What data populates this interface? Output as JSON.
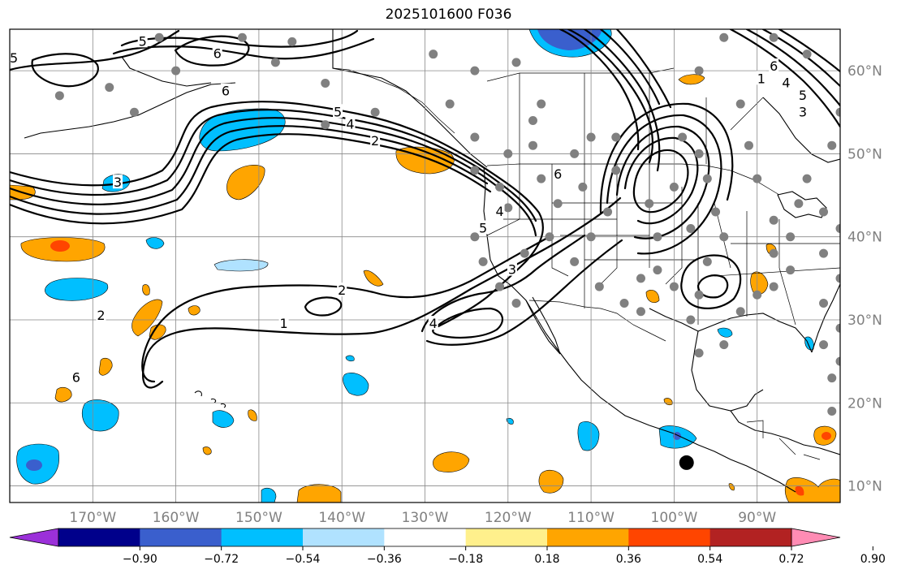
{
  "title": "2025101600 F036",
  "map": {
    "projection": "plate-carree",
    "lon_range": [
      -180,
      -80
    ],
    "lat_range": [
      8,
      65
    ],
    "gridlines": true,
    "lon_ticks": [
      {
        "value": -170,
        "label": "170°W"
      },
      {
        "value": -160,
        "label": "160°W"
      },
      {
        "value": -150,
        "label": "150°W"
      },
      {
        "value": -140,
        "label": "140°W"
      },
      {
        "value": -130,
        "label": "130°W"
      },
      {
        "value": -120,
        "label": "120°W"
      },
      {
        "value": -110,
        "label": "110°W"
      },
      {
        "value": -100,
        "label": "100°W"
      },
      {
        "value": -90,
        "label": "90°W"
      }
    ],
    "lat_ticks": [
      {
        "value": 10,
        "label": "10°N"
      },
      {
        "value": 20,
        "label": "20°N"
      },
      {
        "value": 30,
        "label": "30°N"
      },
      {
        "value": 40,
        "label": "40°N"
      },
      {
        "value": 50,
        "label": "50°N"
      },
      {
        "value": 60,
        "label": "60°N"
      }
    ]
  },
  "colorbar": {
    "orientation": "horizontal",
    "extend": "both",
    "colors": [
      "#9b30d9",
      "#00008b",
      "#3a5fcd",
      "#00bfff",
      "#b0e2ff",
      "#ffffff",
      "#fff08c",
      "#ffa500",
      "#ff4500",
      "#b22222",
      "#ff8cb4"
    ],
    "ticks": [
      "−0.90",
      "−0.72",
      "−0.54",
      "−0.36",
      "−0.18",
      "0.18",
      "0.36",
      "0.54",
      "0.72",
      "0.90"
    ]
  },
  "contour_labels": [
    {
      "text": "5",
      "lon": -179.5,
      "lat": 61.5
    },
    {
      "text": "6",
      "lon": -155,
      "lat": 62
    },
    {
      "text": "5",
      "lon": -164,
      "lat": 63.5
    },
    {
      "text": "6",
      "lon": -154,
      "lat": 57.5
    },
    {
      "text": "5",
      "lon": -140.5,
      "lat": 55
    },
    {
      "text": "4",
      "lon": -139,
      "lat": 53.5
    },
    {
      "text": "3",
      "lon": -167,
      "lat": 46.5
    },
    {
      "text": "2",
      "lon": -136,
      "lat": 51.5
    },
    {
      "text": "2",
      "lon": -140,
      "lat": 33.5
    },
    {
      "text": "1",
      "lon": -147,
      "lat": 29.5
    },
    {
      "text": "2",
      "lon": -169,
      "lat": 30.5
    },
    {
      "text": "6",
      "lon": -172,
      "lat": 23
    },
    {
      "text": "4",
      "lon": -129,
      "lat": 29.5
    },
    {
      "text": "3",
      "lon": -119.5,
      "lat": 36
    },
    {
      "text": "5",
      "lon": -123,
      "lat": 41
    },
    {
      "text": "4",
      "lon": -121,
      "lat": 43
    },
    {
      "text": "6",
      "lon": -114,
      "lat": 47.5
    },
    {
      "text": "1",
      "lon": -89.5,
      "lat": 59
    },
    {
      "text": "6",
      "lon": -88,
      "lat": 60.5
    },
    {
      "text": "4",
      "lon": -86.5,
      "lat": 58.5
    },
    {
      "text": "5",
      "lon": -84.5,
      "lat": 57
    },
    {
      "text": "3",
      "lon": -84.5,
      "lat": 55
    }
  ],
  "station_dots": [
    [
      -160,
      60
    ],
    [
      -168,
      58
    ],
    [
      -174,
      57
    ],
    [
      -146,
      63.5
    ],
    [
      -148,
      61
    ],
    [
      -142,
      58.5
    ],
    [
      -136,
      55
    ],
    [
      -142,
      53.5
    ],
    [
      -129,
      62
    ],
    [
      -124,
      60
    ],
    [
      -119,
      61
    ],
    [
      -127,
      56
    ],
    [
      -124,
      52
    ],
    [
      -120,
      50
    ],
    [
      -117,
      54
    ],
    [
      -117,
      51
    ],
    [
      -124,
      48
    ],
    [
      -121,
      46
    ],
    [
      -120,
      43.5
    ],
    [
      -124,
      40
    ],
    [
      -123,
      37
    ],
    [
      -121,
      34
    ],
    [
      -119,
      32
    ],
    [
      -116,
      47
    ],
    [
      -114,
      44
    ],
    [
      -112,
      50
    ],
    [
      -110,
      52
    ],
    [
      -107,
      52
    ],
    [
      -107,
      48
    ],
    [
      -111,
      46
    ],
    [
      -108,
      43
    ],
    [
      -110,
      40
    ],
    [
      -112,
      37
    ],
    [
      -109,
      34
    ],
    [
      -106,
      32
    ],
    [
      -104,
      35
    ],
    [
      -102,
      40
    ],
    [
      -103,
      44
    ],
    [
      -100,
      46
    ],
    [
      -99,
      52
    ],
    [
      -97,
      50
    ],
    [
      -96,
      47
    ],
    [
      -95,
      43
    ],
    [
      -94,
      40
    ],
    [
      -96,
      37
    ],
    [
      -97,
      33
    ],
    [
      -98,
      30
    ],
    [
      -97,
      26
    ],
    [
      -94,
      27
    ],
    [
      -92,
      31
    ],
    [
      -90,
      33
    ],
    [
      -88,
      34
    ],
    [
      -86,
      36
    ],
    [
      -88,
      38
    ],
    [
      -86,
      40
    ],
    [
      -88,
      42
    ],
    [
      -85,
      44
    ],
    [
      -84,
      47
    ],
    [
      -82,
      43
    ],
    [
      -80,
      41
    ],
    [
      -82,
      38
    ],
    [
      -80,
      35
    ],
    [
      -82,
      32
    ],
    [
      -80,
      29
    ],
    [
      -82,
      27
    ],
    [
      -80,
      25
    ],
    [
      -102,
      36
    ],
    [
      -98,
      41
    ],
    [
      -100,
      34
    ],
    [
      -104,
      31
    ],
    [
      -90,
      47
    ],
    [
      -91,
      51
    ],
    [
      -92,
      56
    ],
    [
      -97,
      60
    ],
    [
      -94,
      64
    ],
    [
      -88,
      64
    ],
    [
      -84,
      62
    ],
    [
      -80,
      55
    ],
    [
      -81,
      51
    ],
    [
      -81,
      23
    ],
    [
      -81,
      19
    ],
    [
      -118,
      38
    ],
    [
      -115,
      40
    ],
    [
      -116,
      56
    ],
    [
      -162,
      64
    ],
    [
      -152,
      64
    ],
    [
      -165,
      55
    ]
  ],
  "black_marker": {
    "lon": -98.5,
    "lat": 12.8
  }
}
